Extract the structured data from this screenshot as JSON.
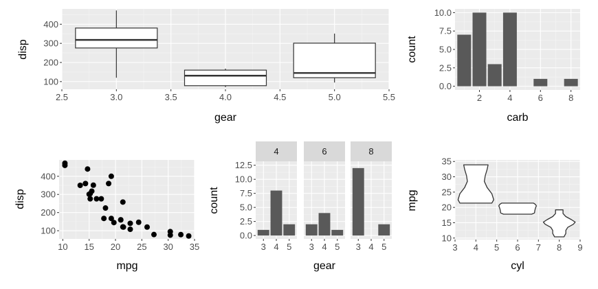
{
  "colors": {
    "panel": "#ebebeb",
    "grid_major": "#ffffff",
    "grid_minor": "#f5f5f5",
    "bar": "#595959",
    "strip": "#d9d9d9",
    "tick_text": "#4d4d4d",
    "point": "#000000"
  },
  "chart_data": [
    {
      "type": "boxplot",
      "xlabel": "gear",
      "ylabel": "disp",
      "xlim": [
        2.5,
        5.5
      ],
      "ylim": [
        60,
        480
      ],
      "xticks": [
        "2.5",
        "3.0",
        "3.5",
        "4.0",
        "4.5",
        "5.0",
        "5.5"
      ],
      "yticks": [
        "100",
        "200",
        "300",
        "400"
      ],
      "boxes": [
        {
          "x": 3,
          "lower": 120.1,
          "q1": 275.8,
          "median": 318,
          "q3": 380,
          "upper": 472
        },
        {
          "x": 4,
          "lower": 71.1,
          "q1": 78.7,
          "median": 130.9,
          "q3": 160,
          "upper": 167.6
        },
        {
          "x": 5,
          "lower": 95.1,
          "q1": 120.3,
          "median": 145,
          "q3": 301,
          "upper": 351
        }
      ]
    },
    {
      "type": "bar",
      "xlabel": "carb",
      "ylabel": "count",
      "xlim": [
        0.4,
        8.6
      ],
      "ylim": [
        -0.5,
        10.5
      ],
      "xticks": [
        "2",
        "4",
        "6",
        "8"
      ],
      "yticks": [
        "0.0",
        "2.5",
        "5.0",
        "7.5",
        "10.0"
      ],
      "categories": [
        1,
        2,
        3,
        4,
        6,
        8
      ],
      "values": [
        7,
        10,
        3,
        10,
        1,
        1
      ]
    },
    {
      "type": "scatter",
      "xlabel": "mpg",
      "ylabel": "disp",
      "xlim": [
        9.3,
        35
      ],
      "ylim": [
        55,
        490
      ],
      "xticks": [
        "10",
        "15",
        "20",
        "25",
        "30",
        "35"
      ],
      "yticks": [
        "100",
        "200",
        "300",
        "400"
      ],
      "points": [
        [
          21,
          160
        ],
        [
          21,
          160
        ],
        [
          22.8,
          108
        ],
        [
          21.4,
          258
        ],
        [
          18.7,
          360
        ],
        [
          18.1,
          225
        ],
        [
          14.3,
          360
        ],
        [
          24.4,
          146.7
        ],
        [
          22.8,
          140.8
        ],
        [
          19.2,
          167.6
        ],
        [
          17.8,
          167.6
        ],
        [
          16.4,
          275.8
        ],
        [
          17.3,
          275.8
        ],
        [
          15.2,
          275.8
        ],
        [
          10.4,
          472
        ],
        [
          10.4,
          460
        ],
        [
          14.7,
          440
        ],
        [
          32.4,
          78.7
        ],
        [
          30.4,
          75.7
        ],
        [
          33.9,
          71.1
        ],
        [
          21.5,
          120.1
        ],
        [
          15.5,
          318
        ],
        [
          15.2,
          304
        ],
        [
          13.3,
          350
        ],
        [
          19.2,
          400
        ],
        [
          27.3,
          79
        ],
        [
          26,
          120.3
        ],
        [
          30.4,
          95.1
        ],
        [
          15.8,
          351
        ],
        [
          19.7,
          145
        ],
        [
          15,
          301
        ],
        [
          21.4,
          121
        ]
      ]
    },
    {
      "type": "bar",
      "xlabel": "gear",
      "ylabel": "count",
      "ylim": [
        -0.6,
        13.2
      ],
      "xticks": [
        "3",
        "4",
        "5"
      ],
      "yticks": [
        "0.0",
        "2.5",
        "5.0",
        "7.5",
        "10.0",
        "12.5"
      ],
      "facets": [
        {
          "label": "4",
          "values": [
            1,
            8,
            2
          ]
        },
        {
          "label": "6",
          "values": [
            2,
            4,
            1
          ]
        },
        {
          "label": "8",
          "values": [
            12,
            0,
            2
          ]
        }
      ]
    },
    {
      "type": "violin",
      "xlabel": "cyl",
      "ylabel": "mpg",
      "xlim": [
        3,
        9
      ],
      "ylim": [
        9.5,
        35.5
      ],
      "xticks": [
        "3",
        "4",
        "5",
        "6",
        "7",
        "8",
        "9"
      ],
      "yticks": [
        "10",
        "15",
        "20",
        "25",
        "30",
        "35"
      ],
      "violins": [
        {
          "x": 4,
          "profile": [
            [
              21.4,
              0.85
            ],
            [
              22.5,
              0.95
            ],
            [
              24.5,
              0.85
            ],
            [
              26.5,
              0.6
            ],
            [
              28.5,
              0.45
            ],
            [
              30.4,
              0.5
            ],
            [
              32.4,
              0.6
            ],
            [
              33.9,
              0.65
            ]
          ]
        },
        {
          "x": 6,
          "profile": [
            [
              17.8,
              0.75
            ],
            [
              18.2,
              0.9
            ],
            [
              19.0,
              0.92
            ],
            [
              19.7,
              0.95
            ],
            [
              20.5,
              1.0
            ],
            [
              21.0,
              0.95
            ],
            [
              21.4,
              0.85
            ]
          ]
        },
        {
          "x": 8,
          "profile": [
            [
              10.4,
              0.25
            ],
            [
              11.5,
              0.35
            ],
            [
              12.5,
              0.35
            ],
            [
              13.5,
              0.45
            ],
            [
              14.5,
              0.75
            ],
            [
              15.2,
              0.85
            ],
            [
              16.0,
              0.65
            ],
            [
              17.0,
              0.35
            ],
            [
              18.0,
              0.2
            ],
            [
              19.2,
              0.2
            ]
          ]
        }
      ]
    }
  ]
}
